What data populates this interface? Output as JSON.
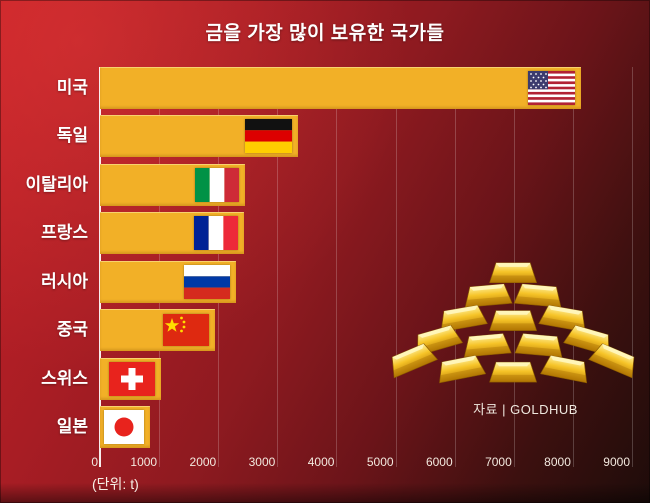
{
  "title": "금을 가장 많이 보유한 국가들",
  "unit_label": "(단위: t)",
  "source_label": "자료 | GOLDHUB",
  "colors": {
    "bar_gold": "#f2b027",
    "background_bright_red": "#c62128",
    "background_dark": "#1e0c0a",
    "axis_line": "#ffffff",
    "text": "#ffffff"
  },
  "icons": {
    "flags": [
      "us-flag",
      "germany-flag",
      "italy-flag",
      "france-flag",
      "russia-flag",
      "china-flag",
      "switzerland-flag",
      "japan-flag"
    ],
    "decoration": "gold-ingots-pyramid"
  },
  "chart_data": {
    "type": "bar",
    "orientation": "horizontal",
    "title": "금을 가장 많이 보유한 국가들",
    "categories": [
      "미국",
      "독일",
      "이탈리아",
      "프랑스",
      "러시아",
      "중국",
      "스위스",
      "일본"
    ],
    "values": [
      8133,
      3355,
      2452,
      2436,
      2299,
      1948,
      1040,
      846
    ],
    "unit": "t",
    "xlabel": "(단위: t)",
    "xlim": [
      0,
      9000
    ],
    "xticks": [
      0,
      1000,
      2000,
      3000,
      4000,
      5000,
      6000,
      7000,
      8000,
      9000
    ],
    "grid": "vertical",
    "legend": "none",
    "source": "자료 | GOLDHUB"
  }
}
